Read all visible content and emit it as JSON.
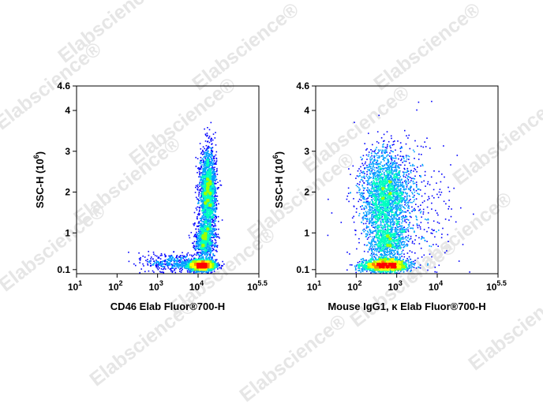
{
  "watermark": {
    "text": "Elabscience",
    "mark": "®"
  },
  "chart_data": [
    {
      "type": "scatter",
      "style": "density-dot-plot",
      "colormap": [
        "#0000ff",
        "#00a0ff",
        "#00ffc0",
        "#a0ff00",
        "#ffff00",
        "#ff8000",
        "#ff0000"
      ],
      "xscale": "log",
      "xlim": [
        10,
        316228
      ],
      "ylim": [
        0,
        4.6
      ],
      "xlabel": "CD46 Elab Fluor®700-H",
      "ylabel_main": "SSC-H  (10",
      "ylabel_sup": "6",
      "ylabel_close": ")",
      "xticks": [
        {
          "value": 10,
          "base": "10",
          "exp": "1"
        },
        {
          "value": 100,
          "base": "10",
          "exp": "2"
        },
        {
          "value": 1000,
          "base": "10",
          "exp": "3"
        },
        {
          "value": 10000,
          "base": "10",
          "exp": "4"
        },
        {
          "value": 316228,
          "base": "10",
          "exp": "5.5"
        }
      ],
      "yticks": [
        {
          "value": 0.1,
          "label": "0.1"
        },
        {
          "value": 1,
          "label": "1"
        },
        {
          "value": 2,
          "label": "2"
        },
        {
          "value": 3,
          "label": "3"
        },
        {
          "value": 4,
          "label": "4"
        },
        {
          "value": 4.6,
          "label": "4.6"
        }
      ],
      "populations": [
        {
          "x_center": 12000,
          "y_center": 0.22,
          "x_spread": 0.17,
          "y_spread": 0.07,
          "weight": 0.36
        },
        {
          "x_center": 14000,
          "y_center": 0.85,
          "x_spread": 0.12,
          "y_spread": 0.22,
          "weight": 0.16
        },
        {
          "x_center": 17000,
          "y_center": 2.0,
          "x_spread": 0.1,
          "y_spread": 0.52,
          "weight": 0.4
        },
        {
          "x_center": 2500,
          "y_center": 0.28,
          "x_spread": 0.35,
          "y_spread": 0.12,
          "weight": 0.08
        }
      ]
    },
    {
      "type": "scatter",
      "style": "density-dot-plot",
      "colormap": [
        "#0000ff",
        "#00a0ff",
        "#00ffc0",
        "#a0ff00",
        "#ffff00",
        "#ff8000",
        "#ff0000"
      ],
      "xscale": "log",
      "xlim": [
        10,
        316228
      ],
      "ylim": [
        0,
        4.6
      ],
      "xlabel": "Mouse IgG1, κ Elab Fluor®700-H",
      "ylabel_main": "SSC-H  (10",
      "ylabel_sup": "6",
      "ylabel_close": ")",
      "xticks": [
        {
          "value": 10,
          "base": "10",
          "exp": "1"
        },
        {
          "value": 100,
          "base": "10",
          "exp": "2"
        },
        {
          "value": 1000,
          "base": "10",
          "exp": "3"
        },
        {
          "value": 10000,
          "base": "10",
          "exp": "4"
        },
        {
          "value": 316228,
          "base": "10",
          "exp": "5.5"
        }
      ],
      "yticks": [
        {
          "value": 0.1,
          "label": "0.1"
        },
        {
          "value": 1,
          "label": "1"
        },
        {
          "value": 2,
          "label": "2"
        },
        {
          "value": 3,
          "label": "3"
        },
        {
          "value": 4,
          "label": "4"
        },
        {
          "value": 4.6,
          "label": "4.6"
        }
      ],
      "populations": [
        {
          "x_center": 500,
          "y_center": 0.22,
          "x_spread": 0.28,
          "y_spread": 0.08,
          "weight": 0.36
        },
        {
          "x_center": 550,
          "y_center": 0.8,
          "x_spread": 0.22,
          "y_spread": 0.22,
          "weight": 0.14
        },
        {
          "x_center": 500,
          "y_center": 1.95,
          "x_spread": 0.3,
          "y_spread": 0.55,
          "weight": 0.42
        },
        {
          "x_center": 2000,
          "y_center": 1.5,
          "x_spread": 0.6,
          "y_spread": 0.9,
          "weight": 0.08
        }
      ]
    }
  ]
}
